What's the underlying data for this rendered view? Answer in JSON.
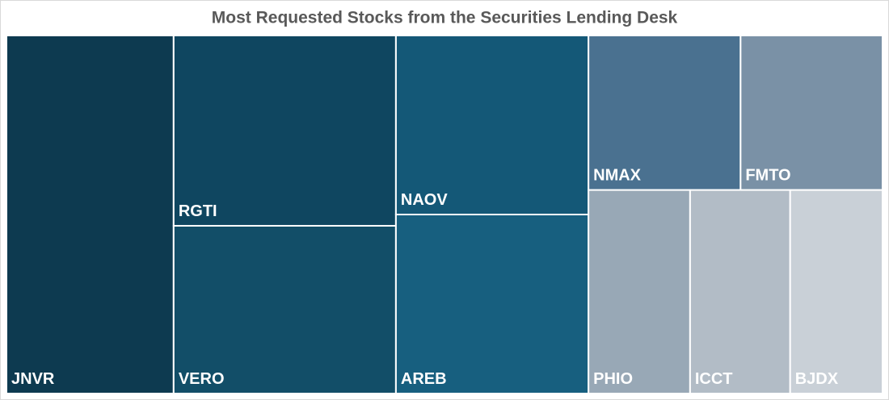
{
  "chart_data": {
    "type": "treemap",
    "title": "Most Requested Stocks from the Securities Lending Desk",
    "categories": [
      "JNVR",
      "RGTI",
      "VERO",
      "NAOV",
      "AREB",
      "NMAX",
      "FMTO",
      "PHIO",
      "ICCT",
      "BJDX"
    ],
    "values": [
      19.1,
      13.5,
      11.9,
      11.0,
      11.0,
      7.5,
      7.0,
      6.6,
      6.5,
      6.0
    ],
    "colors": [
      "#0d3a50",
      "#0f4660",
      "#124e68",
      "#145877",
      "#175f7f",
      "#4a7190",
      "#7a91a6",
      "#98a8b6",
      "#b2bcc6",
      "#c9d0d7"
    ]
  }
}
